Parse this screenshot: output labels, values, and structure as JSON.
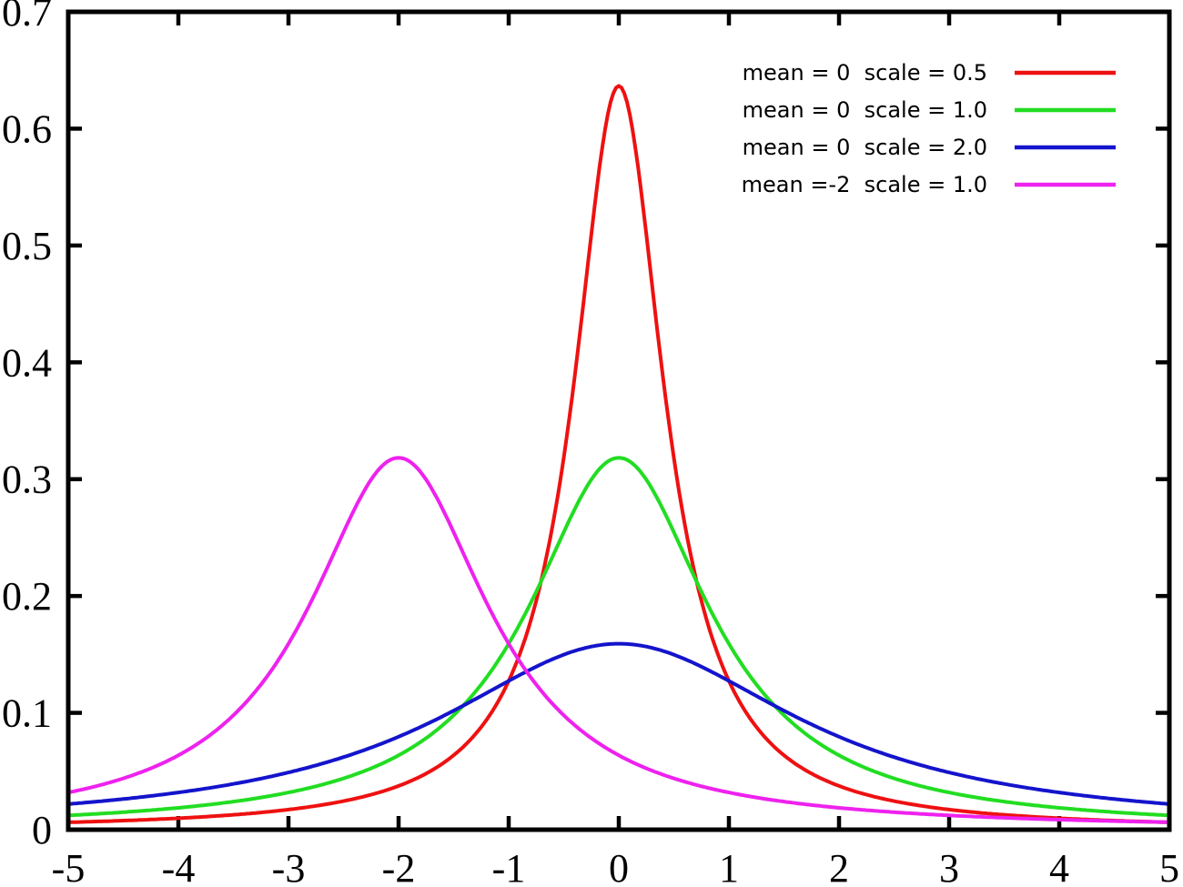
{
  "chart_data": {
    "type": "line",
    "title": "",
    "xlabel": "",
    "ylabel": "",
    "xlim": [
      -5,
      5
    ],
    "ylim": [
      0,
      0.7
    ],
    "x_ticks": [
      -5,
      -4,
      -3,
      -2,
      -1,
      0,
      1,
      2,
      3,
      4,
      5
    ],
    "x_tick_labels": [
      "-5",
      "-4",
      "-3",
      "-2",
      "-1",
      "0",
      "1",
      "2",
      "3",
      "4",
      "5"
    ],
    "y_ticks": [
      0,
      0.1,
      0.2,
      0.3,
      0.4,
      0.5,
      0.6,
      0.7
    ],
    "y_tick_labels": [
      "0",
      "0.1",
      "0.2",
      "0.3",
      "0.4",
      "0.5",
      "0.6",
      "0.7"
    ],
    "grid": false,
    "legend_position": "top-right",
    "frame_color": "#000000",
    "background_color": "#ffffff",
    "curve_family": "cauchy_pdf",
    "series": [
      {
        "name": "mean = 0  scale = 0.5",
        "color": "#ee1111",
        "location": 0,
        "scale": 0.5,
        "peak_x": 0,
        "peak_value": 0.6366
      },
      {
        "name": "mean = 0  scale = 1.0",
        "color": "#22dd22",
        "location": 0,
        "scale": 1.0,
        "peak_x": 0,
        "peak_value": 0.3183
      },
      {
        "name": "mean = 0  scale = 2.0",
        "color": "#1414cc",
        "location": 0,
        "scale": 2.0,
        "peak_x": 0,
        "peak_value": 0.1592
      },
      {
        "name": "mean =-2  scale = 1.0",
        "color": "#ee22ee",
        "location": -2,
        "scale": 1.0,
        "peak_x": -2,
        "peak_value": 0.3183
      }
    ]
  }
}
